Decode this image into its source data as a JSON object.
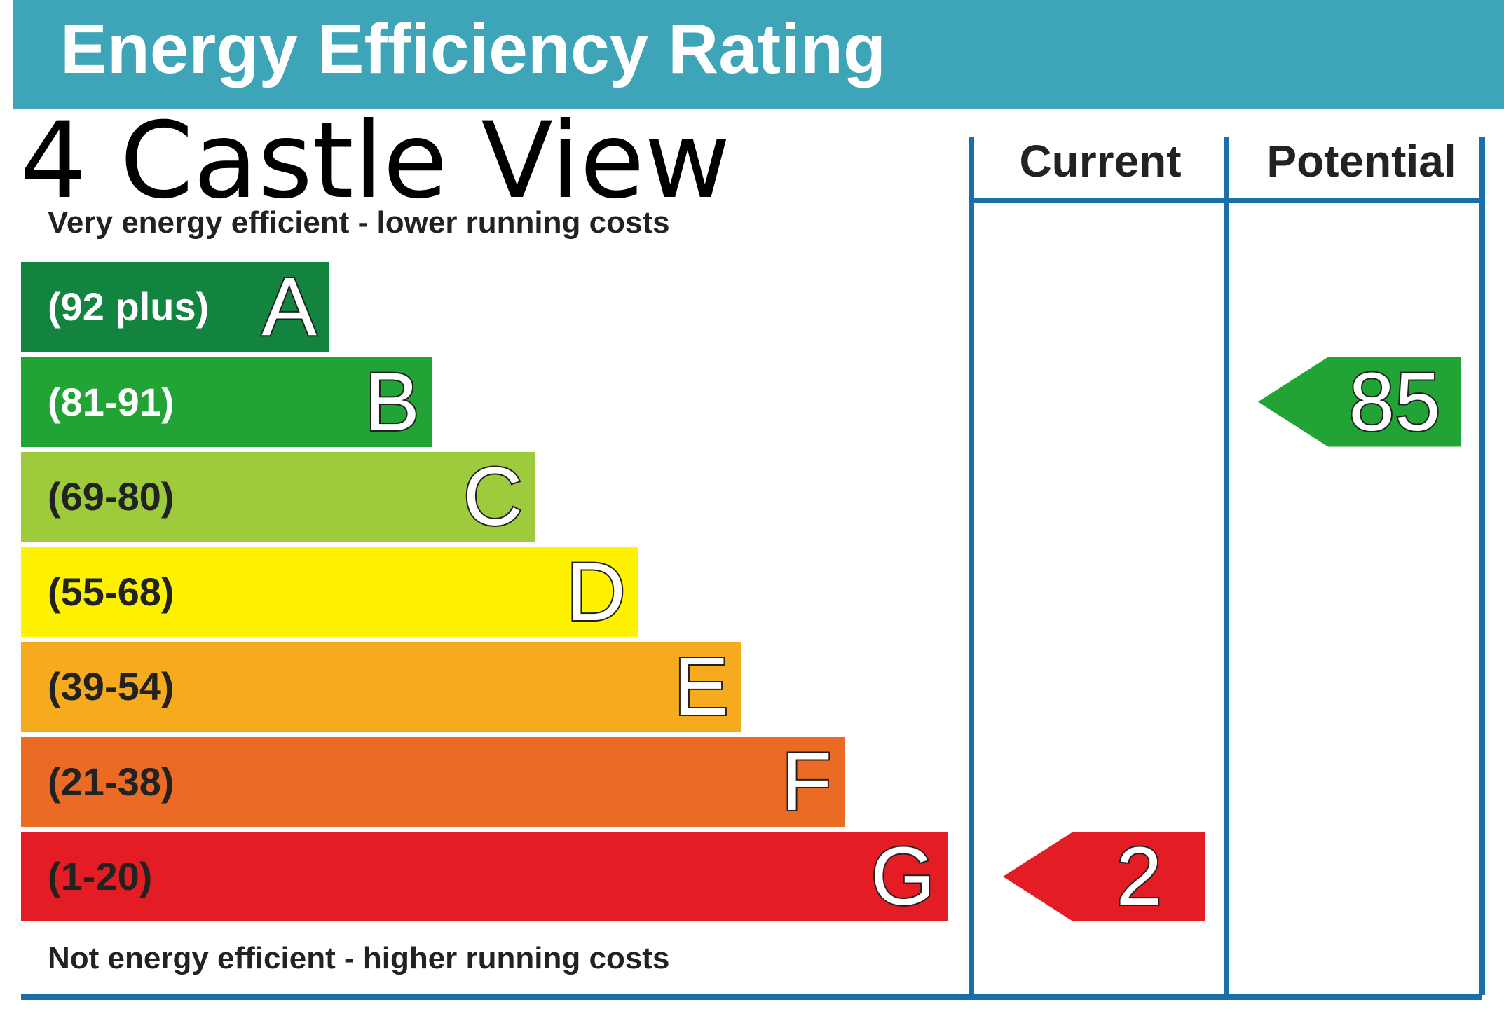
{
  "header": {
    "title": "Energy Efficiency Rating"
  },
  "property": {
    "address": "4 Castle View"
  },
  "notes": {
    "top": "Very energy efficient - lower running costs",
    "bottom": "Not energy efficient - higher running costs"
  },
  "columns": {
    "current": "Current",
    "potential": "Potential"
  },
  "chart_data": {
    "type": "bar",
    "categories": [
      "A",
      "B",
      "C",
      "D",
      "E",
      "F",
      "G"
    ],
    "bands": [
      {
        "letter": "A",
        "range": "(92 plus)",
        "color": "#13843f",
        "text_color": "#ffffff"
      },
      {
        "letter": "B",
        "range": "(81-91)",
        "color": "#22a336",
        "text_color": "#ffffff"
      },
      {
        "letter": "C",
        "range": "(69-80)",
        "color": "#9ecb3c",
        "text_color": "#222222"
      },
      {
        "letter": "D",
        "range": "(55-68)",
        "color": "#fff200",
        "text_color": "#222222"
      },
      {
        "letter": "E",
        "range": "(39-54)",
        "color": "#f6ab1f",
        "text_color": "#222222"
      },
      {
        "letter": "F",
        "range": "(21-38)",
        "color": "#ec6b24",
        "text_color": "#222222"
      },
      {
        "letter": "G",
        "range": "(1-20)",
        "color": "#e31d23",
        "text_color": "#222222"
      }
    ],
    "current": {
      "value": 2,
      "band": "G",
      "color": "#e31d23"
    },
    "potential": {
      "value": 85,
      "band": "B",
      "color": "#22a336"
    },
    "frame_color": "#1a6fa8"
  }
}
